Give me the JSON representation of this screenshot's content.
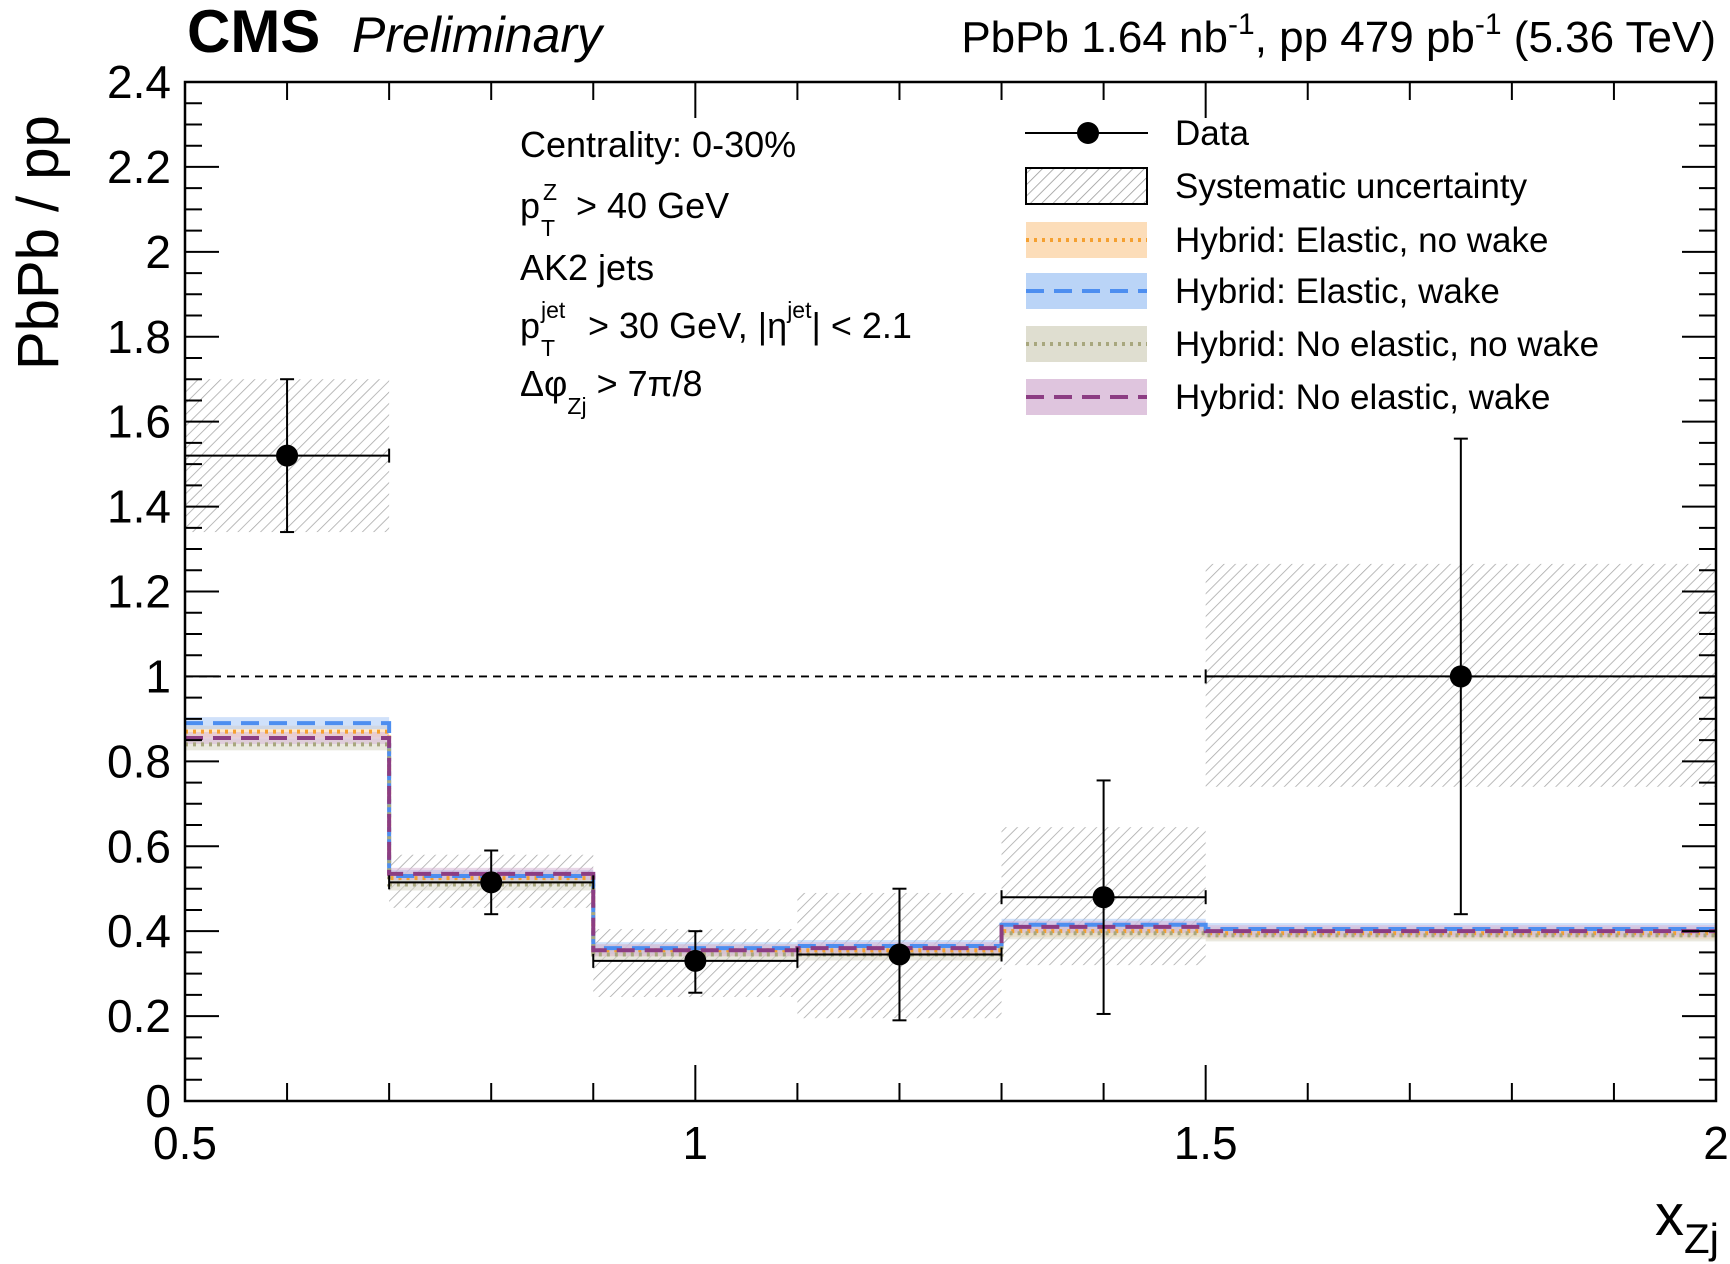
{
  "header": {
    "experiment": "CMS",
    "status": "Preliminary",
    "lumi_text": {
      "pre1": "PbPb 1.64 nb",
      "sup1": "-1",
      "pre2": ", pp 479 pb",
      "sup2": "-1",
      "post": " (5.36 TeV)"
    }
  },
  "selection": {
    "centrality": "Centrality: 0-30%",
    "ptz": {
      "base": "p",
      "sup": "Z",
      "sub": "T",
      "rest": " > 40 GeV"
    },
    "jets": "AK2 jets",
    "ptjet": {
      "base": "p",
      "sup": "jet",
      "sub": "T",
      "rest1": " > 30 GeV, |η",
      "sup2": "jet",
      "rest2": "| < 2.1"
    },
    "dphi": {
      "base": "Δφ",
      "sub": "Zj",
      "rest": " > 7π/8"
    }
  },
  "legend": {
    "placement": "top-right",
    "data": "Data",
    "syst": "Systematic uncertainty",
    "models": [
      "Hybrid: Elastic, no wake",
      "Hybrid: Elastic, wake",
      "Hybrid: No elastic, no wake",
      "Hybrid: No elastic, wake"
    ]
  },
  "chart_data": {
    "type": "line",
    "xlabel": {
      "base": "x",
      "sub": "Zj"
    },
    "ylabel": "PbPb / pp",
    "xlim": [
      0.5,
      2.0
    ],
    "ylim": [
      0,
      2.4
    ],
    "x_ticks": [
      0.5,
      1.0,
      1.5,
      2.0
    ],
    "x_tick_labels": [
      "0.5",
      "1",
      "1.5",
      "2"
    ],
    "y_ticks": [
      0,
      0.2,
      0.4,
      0.6,
      0.8,
      1.0,
      1.2,
      1.4,
      1.6,
      1.8,
      2.0,
      2.2,
      2.4
    ],
    "y_tick_labels": [
      "0",
      "0.2",
      "0.4",
      "0.6",
      "0.8",
      "1",
      "1.2",
      "1.4",
      "1.6",
      "1.8",
      "2",
      "2.2",
      "2.4"
    ],
    "reference_line": 1.0,
    "bin_edges": [
      0.5,
      0.7,
      0.9,
      1.1,
      1.3,
      1.5,
      2.0
    ],
    "data": {
      "name": "Data",
      "x": [
        0.6,
        0.8,
        1.0,
        1.2,
        1.4,
        1.75
      ],
      "y": [
        1.52,
        0.515,
        0.33,
        0.345,
        0.48,
        1.0
      ],
      "x_err": [
        0.1,
        0.1,
        0.1,
        0.1,
        0.1,
        0.25
      ],
      "y_err_low": [
        0.18,
        0.075,
        0.075,
        0.155,
        0.275,
        0.56
      ],
      "y_err_high": [
        0.18,
        0.075,
        0.07,
        0.155,
        0.275,
        0.56
      ],
      "syst_low": [
        1.34,
        0.455,
        0.245,
        0.195,
        0.32,
        0.74
      ],
      "syst_high": [
        1.7,
        0.58,
        0.405,
        0.49,
        0.645,
        1.265
      ]
    },
    "series": [
      {
        "name": "Hybrid: Elastic, no wake",
        "color": "#f5a030",
        "band": "#fbd5a8",
        "style": "dotted",
        "values": [
          0.87,
          0.525,
          0.355,
          0.355,
          0.4,
          0.395
        ]
      },
      {
        "name": "Hybrid: Elastic, wake",
        "color": "#4d8ef0",
        "band": "#a9c9f5",
        "style": "dashed",
        "values": [
          0.89,
          0.53,
          0.36,
          0.365,
          0.415,
          0.405
        ]
      },
      {
        "name": "Hybrid: No elastic, no wake",
        "color": "#a8a77e",
        "band": "#d7d6c4",
        "style": "dotted",
        "values": [
          0.84,
          0.51,
          0.345,
          0.345,
          0.395,
          0.39
        ]
      },
      {
        "name": "Hybrid: No elastic, wake",
        "color": "#8c3d83",
        "band": "#d7b7d6",
        "style": "dashed",
        "values": [
          0.855,
          0.535,
          0.355,
          0.36,
          0.41,
          0.4
        ]
      }
    ]
  }
}
